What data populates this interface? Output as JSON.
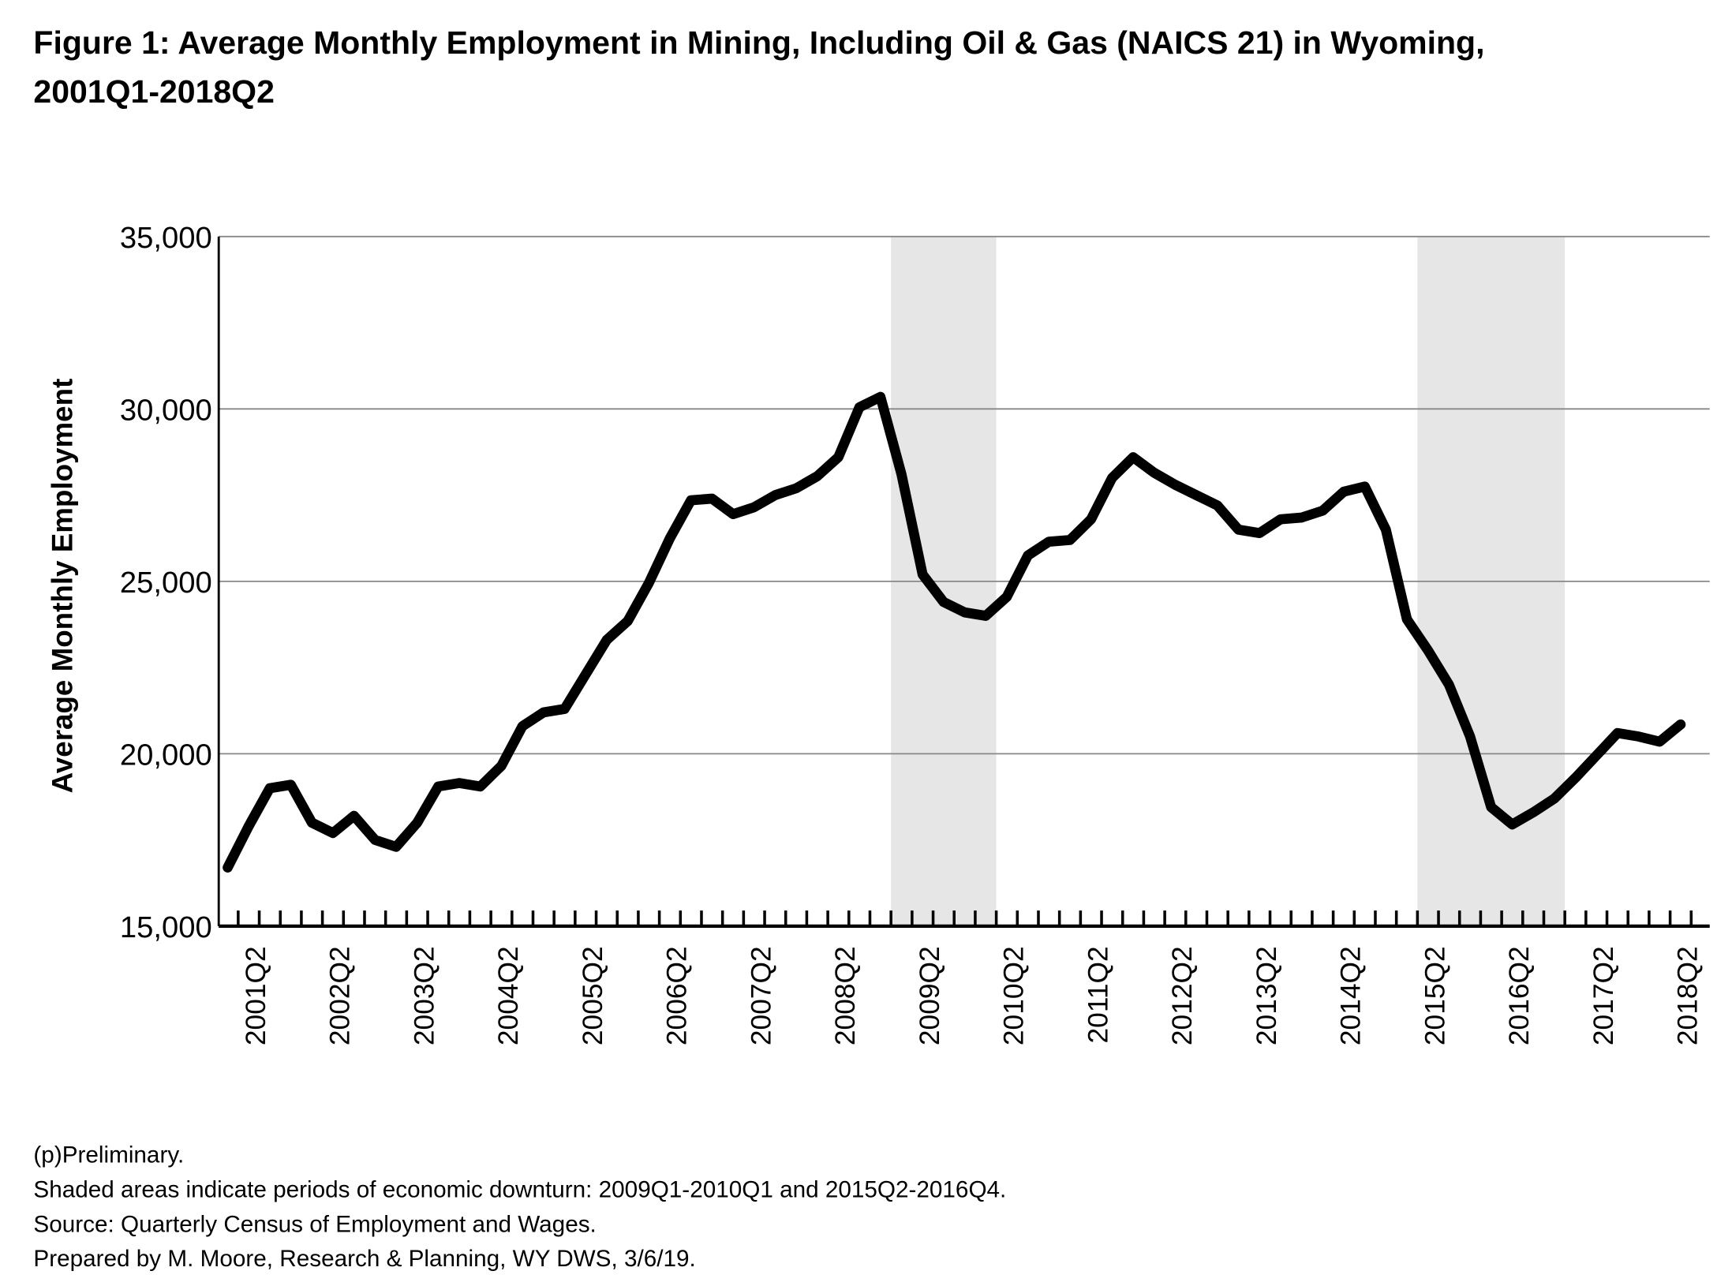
{
  "chart_data": {
    "type": "line",
    "title": [
      "Figure 1: Average Monthly Employment in Mining, Including Oil & Gas (NAICS 21) in Wyoming,",
      "2001Q1-2018Q2"
    ],
    "y_label": "Average Monthly Employment",
    "notes": [
      "(p)Preliminary.",
      "Shaded areas indicate periods of economic downturn: 2009Q1-2010Q1 and 2015Q2-2016Q4.",
      "Source: Quarterly Census of Employment and Wages.",
      "Prepared by M. Moore, Research & Planning, WY DWS, 3/6/19."
    ],
    "categories": [
      null,
      "2001Q2",
      null,
      null,
      null,
      "2002Q2",
      null,
      null,
      null,
      "2003Q2",
      null,
      null,
      null,
      "2004Q2",
      null,
      null,
      null,
      "2005Q2",
      null,
      null,
      null,
      "2006Q2",
      null,
      null,
      null,
      "2007Q2",
      null,
      null,
      null,
      "2008Q2",
      null,
      null,
      null,
      "2009Q2",
      null,
      null,
      null,
      "2010Q2",
      null,
      null,
      null,
      "2011Q2",
      null,
      null,
      null,
      "2012Q2",
      null,
      null,
      null,
      "2013Q2",
      null,
      null,
      null,
      "2014Q2",
      null,
      null,
      null,
      "2015Q2",
      null,
      null,
      null,
      "2016Q2",
      null,
      null,
      null,
      "2017Q2",
      null,
      null,
      null,
      "2018Q2"
    ],
    "series": [
      {
        "name": "Average Monthly Employment",
        "color": "#000000",
        "values": [
          16700,
          17900,
          19000,
          19100,
          18000,
          17700,
          18200,
          17500,
          17300,
          18000,
          19050,
          19150,
          19050,
          19650,
          20800,
          21200,
          21300,
          22300,
          23300,
          23850,
          24950,
          26250,
          27350,
          27400,
          26950,
          27150,
          27500,
          27700,
          28050,
          28600,
          30050,
          30350,
          28100,
          25200,
          24400,
          24100,
          24000,
          24550,
          25750,
          26150,
          26200,
          26800,
          28000,
          28600,
          28150,
          27800,
          27500,
          27200,
          26500,
          26400,
          26800,
          26850,
          27050,
          27600,
          27750,
          26500,
          23900,
          23000,
          22000,
          20500,
          18450,
          17950,
          18300,
          18700,
          19300,
          19950,
          20600,
          20500,
          20350,
          20850
        ]
      }
    ],
    "shaded_periods": [
      {
        "start": 32,
        "end": 36
      },
      {
        "start": 57,
        "end": 63
      }
    ],
    "shade_color": "#e6e6e6",
    "ylim": [
      15000,
      35000
    ],
    "yticks": [
      {
        "value": 15000,
        "label": "15,000"
      },
      {
        "value": 20000,
        "label": "20,000"
      },
      {
        "value": 25000,
        "label": "25,000"
      },
      {
        "value": 30000,
        "label": "30,000"
      },
      {
        "value": 35000,
        "label": "35,000"
      }
    ],
    "grid": true
  }
}
